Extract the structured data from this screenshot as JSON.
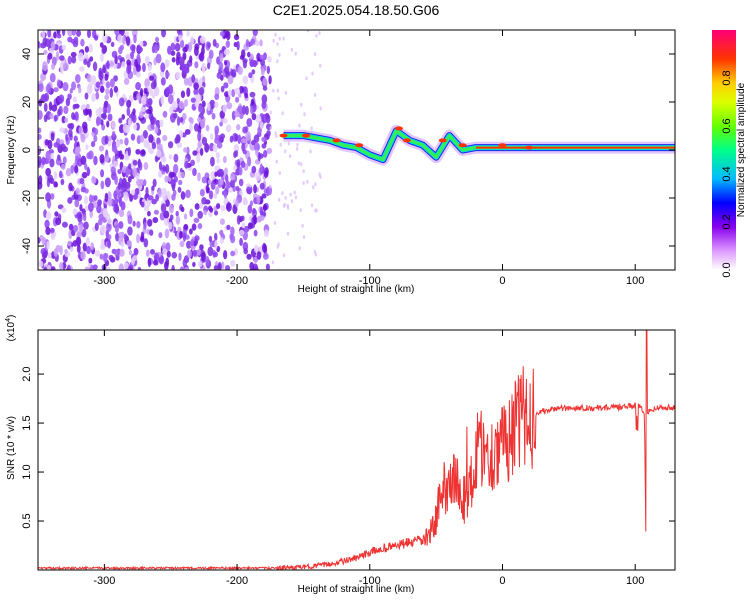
{
  "title": "C2E1.2025.054.18.50.G06",
  "colors": {
    "snr_line": "#ee3333",
    "spectrogram_noise": "#7a2fe0",
    "colormap": [
      "#ffffff",
      "#cc88ff",
      "#6600cc",
      "#0000ff",
      "#00ccff",
      "#00ff66",
      "#ccff00",
      "#ffcc00",
      "#ff3300",
      "#ff0066"
    ]
  },
  "chart_data": [
    {
      "type": "heatmap",
      "name": "spectrogram",
      "title": "",
      "xlabel": "Height of straight line (km)",
      "ylabel": "Frequency (Hz)",
      "xlim": [
        -350,
        130
      ],
      "ylim": [
        -50,
        50
      ],
      "x_ticks": [
        -300,
        -200,
        -100,
        0,
        100
      ],
      "y_ticks": [
        -40,
        -20,
        0,
        20,
        40
      ],
      "colorbar": {
        "label": "Normalized spectral amplitude",
        "range": [
          0.0,
          1.0
        ],
        "ticks": [
          0.0,
          0.2,
          0.4,
          0.6,
          0.8
        ]
      },
      "features": [
        {
          "description": "broadband noise",
          "x_range": [
            -350,
            -175
          ],
          "y_range": [
            -50,
            50
          ],
          "amplitude": 0.25
        },
        {
          "description": "signal track",
          "points": [
            [
              -165,
              6
            ],
            [
              -150,
              6
            ],
            [
              -140,
              5
            ],
            [
              -130,
              4
            ],
            [
              -120,
              2
            ],
            [
              -110,
              1
            ],
            [
              -100,
              -2
            ],
            [
              -90,
              -4
            ],
            [
              -80,
              8
            ],
            [
              -70,
              4
            ],
            [
              -60,
              2
            ],
            [
              -50,
              -3
            ],
            [
              -40,
              6
            ],
            [
              -30,
              0
            ],
            [
              -20,
              1
            ],
            [
              0,
              1
            ],
            [
              50,
              1
            ],
            [
              100,
              1
            ],
            [
              130,
              1
            ]
          ],
          "amplitude": 0.9
        }
      ]
    },
    {
      "type": "line",
      "name": "snr",
      "title": "",
      "xlabel": "Height of straight line (km)",
      "ylabel": "SNR (10 * v/v)",
      "y_scale_label": "(x10^4)",
      "xlim": [
        -350,
        130
      ],
      "ylim": [
        0,
        2.45
      ],
      "x_ticks": [
        -300,
        -200,
        -100,
        0,
        100
      ],
      "y_ticks": [
        0.5,
        1.0,
        1.5,
        2.0
      ],
      "x_tick_labels": [
        "-300",
        "-200",
        "-100",
        "0",
        "100"
      ],
      "y_tick_labels": [
        "0.5",
        "1.0",
        "1.5",
        "2.0"
      ],
      "series": [
        {
          "x": [
            -350,
            -300,
            -250,
            -200,
            -170,
            -150,
            -130,
            -120,
            -110,
            -100,
            -90,
            -80,
            -70,
            -60,
            -55,
            -50,
            -45,
            -40,
            -35,
            -30,
            -25,
            -20,
            -15,
            -10,
            -5,
            0,
            5,
            10,
            15,
            20,
            25,
            30,
            35,
            40,
            50,
            60,
            70,
            80,
            90,
            95,
            100,
            105,
            107,
            108,
            109,
            110,
            115,
            120,
            125,
            130
          ],
          "y": [
            0.02,
            0.02,
            0.02,
            0.02,
            0.02,
            0.03,
            0.06,
            0.09,
            0.12,
            0.18,
            0.22,
            0.25,
            0.28,
            0.3,
            0.35,
            0.55,
            0.8,
            0.95,
            0.9,
            0.7,
            0.8,
            1.2,
            1.3,
            1.1,
            1.3,
            1.25,
            1.4,
            1.45,
            1.55,
            1.55,
            1.6,
            1.62,
            1.63,
            1.65,
            1.65,
            1.66,
            1.65,
            1.66,
            1.66,
            1.67,
            1.68,
            1.65,
            1.6,
            0.4,
            1.6,
            1.62,
            1.65,
            1.66,
            1.66,
            1.65
          ]
        }
      ]
    }
  ]
}
